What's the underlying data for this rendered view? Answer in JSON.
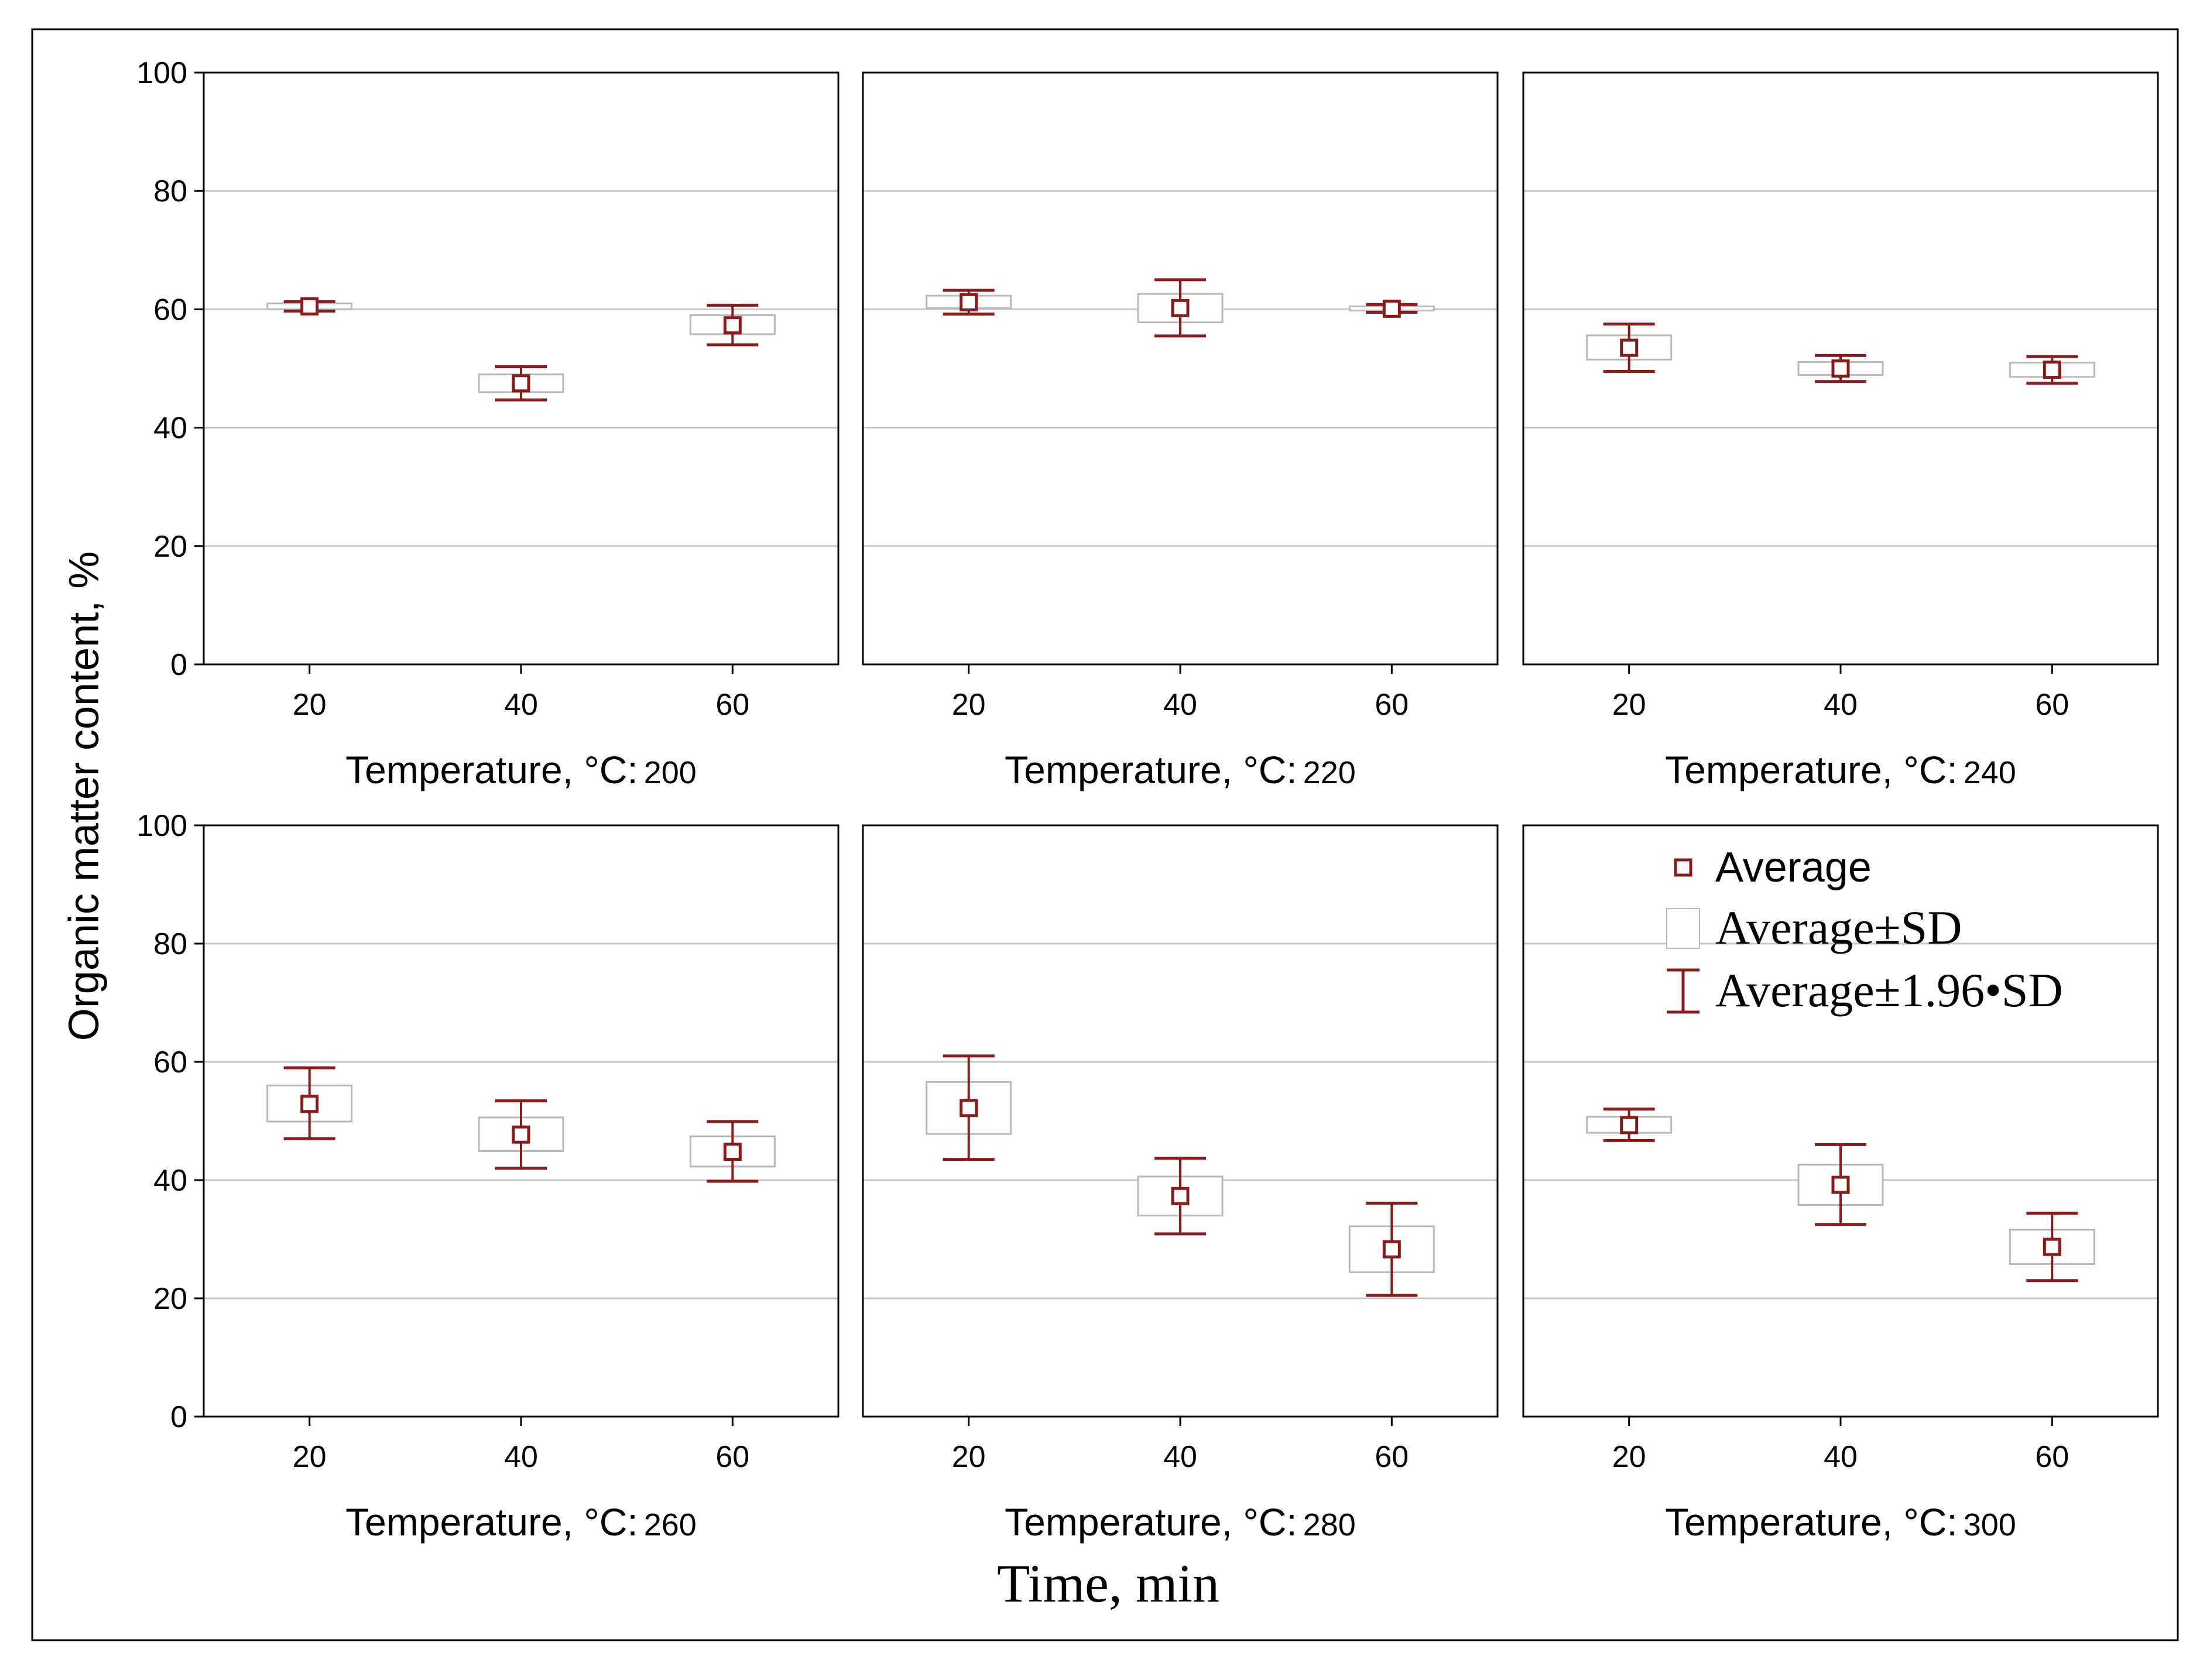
{
  "chart_data": {
    "type": "box",
    "xlabel": "Time, min",
    "ylabel": "Organic matter content, %",
    "ylim": [
      0,
      100
    ],
    "yticks": [
      "0",
      "20",
      "40",
      "60",
      "80",
      "100"
    ],
    "categories": [
      "20",
      "40",
      "60"
    ],
    "facet_label": "Temperature, °C:",
    "legend": {
      "position": "top-right",
      "average": "Average",
      "sd": "Average±SD",
      "ci": "Average±1.96•SD"
    },
    "colors": {
      "mark": "#8b1a1a",
      "box_edge": "#b9b9b9",
      "grid": "#c8c8c8"
    },
    "panels": [
      {
        "temperature": "200",
        "series": [
          {
            "x": "20",
            "mean": 60.5,
            "sd_low": 60.0,
            "sd_high": 61.0,
            "ci_low": 59.7,
            "ci_high": 61.3
          },
          {
            "x": "40",
            "mean": 47.5,
            "sd_low": 46.0,
            "sd_high": 49.0,
            "ci_low": 44.7,
            "ci_high": 50.3
          },
          {
            "x": "60",
            "mean": 57.3,
            "sd_low": 55.8,
            "sd_high": 59.0,
            "ci_low": 54.0,
            "ci_high": 60.7
          }
        ]
      },
      {
        "temperature": "220",
        "series": [
          {
            "x": "20",
            "mean": 61.2,
            "sd_low": 60.2,
            "sd_high": 62.3,
            "ci_low": 59.2,
            "ci_high": 63.2
          },
          {
            "x": "40",
            "mean": 60.2,
            "sd_low": 57.8,
            "sd_high": 62.6,
            "ci_low": 55.5,
            "ci_high": 65.0
          },
          {
            "x": "60",
            "mean": 60.1,
            "sd_low": 59.8,
            "sd_high": 60.5,
            "ci_low": 59.5,
            "ci_high": 60.8
          }
        ]
      },
      {
        "temperature": "240",
        "series": [
          {
            "x": "20",
            "mean": 53.5,
            "sd_low": 51.5,
            "sd_high": 55.6,
            "ci_low": 49.5,
            "ci_high": 57.5
          },
          {
            "x": "40",
            "mean": 50.0,
            "sd_low": 48.9,
            "sd_high": 51.1,
            "ci_low": 47.8,
            "ci_high": 52.2
          },
          {
            "x": "60",
            "mean": 49.8,
            "sd_low": 48.6,
            "sd_high": 51.0,
            "ci_low": 47.5,
            "ci_high": 52.0
          }
        ]
      },
      {
        "temperature": "260",
        "series": [
          {
            "x": "20",
            "mean": 52.9,
            "sd_low": 49.9,
            "sd_high": 56.0,
            "ci_low": 47.0,
            "ci_high": 59.0
          },
          {
            "x": "40",
            "mean": 47.7,
            "sd_low": 44.9,
            "sd_high": 50.6,
            "ci_low": 42.0,
            "ci_high": 53.4
          },
          {
            "x": "60",
            "mean": 44.8,
            "sd_low": 42.3,
            "sd_high": 47.4,
            "ci_low": 39.8,
            "ci_high": 49.9
          }
        ]
      },
      {
        "temperature": "280",
        "series": [
          {
            "x": "20",
            "mean": 52.2,
            "sd_low": 47.8,
            "sd_high": 56.6,
            "ci_low": 43.5,
            "ci_high": 61.0
          },
          {
            "x": "40",
            "mean": 37.3,
            "sd_low": 34.0,
            "sd_high": 40.6,
            "ci_low": 30.9,
            "ci_high": 43.7
          },
          {
            "x": "60",
            "mean": 28.3,
            "sd_low": 24.4,
            "sd_high": 32.2,
            "ci_low": 20.5,
            "ci_high": 36.1
          }
        ]
      },
      {
        "temperature": "300",
        "series": [
          {
            "x": "20",
            "mean": 49.3,
            "sd_low": 48.0,
            "sd_high": 50.7,
            "ci_low": 46.7,
            "ci_high": 52.0
          },
          {
            "x": "40",
            "mean": 39.2,
            "sd_low": 35.8,
            "sd_high": 42.6,
            "ci_low": 32.5,
            "ci_high": 46.0
          },
          {
            "x": "60",
            "mean": 28.7,
            "sd_low": 25.8,
            "sd_high": 31.6,
            "ci_low": 23.0,
            "ci_high": 34.4
          }
        ]
      }
    ]
  }
}
